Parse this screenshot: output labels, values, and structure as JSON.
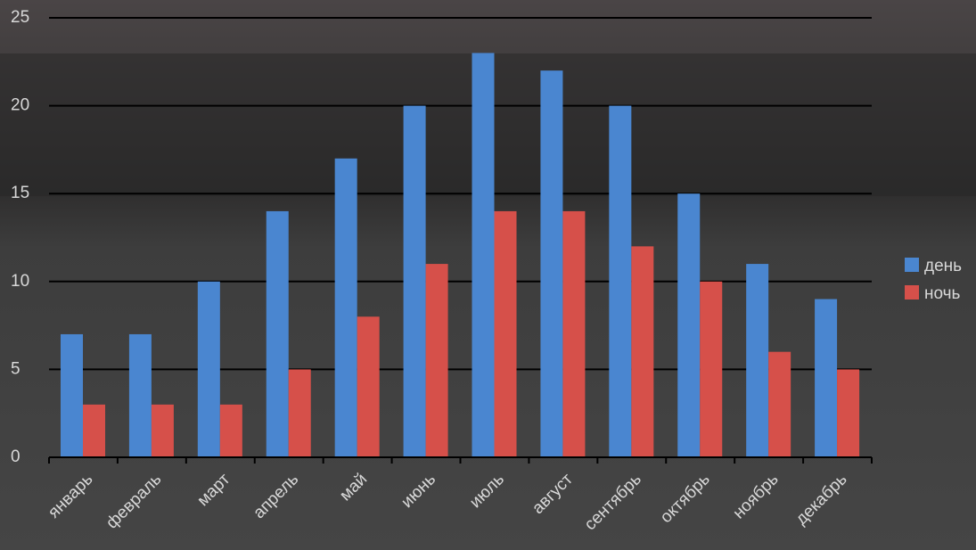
{
  "chart_data": {
    "type": "bar",
    "categories": [
      "январь",
      "февраль",
      "март",
      "апрель",
      "май",
      "июнь",
      "июль",
      "август",
      "сентябрь",
      "октябрь",
      "ноябрь",
      "декабрь"
    ],
    "series": [
      {
        "name": "день",
        "color": "#4a86d0",
        "values": [
          7,
          7,
          10,
          14,
          17,
          20,
          23,
          22,
          20,
          15,
          11,
          9
        ]
      },
      {
        "name": "ночь",
        "color": "#d6504a",
        "values": [
          3,
          3,
          3,
          5,
          8,
          11,
          14,
          14,
          12,
          10,
          6,
          5
        ]
      }
    ],
    "ylim": [
      0,
      25
    ],
    "yticks": [
      0,
      5,
      10,
      15,
      20,
      25
    ],
    "grid": true,
    "legend": "right"
  }
}
